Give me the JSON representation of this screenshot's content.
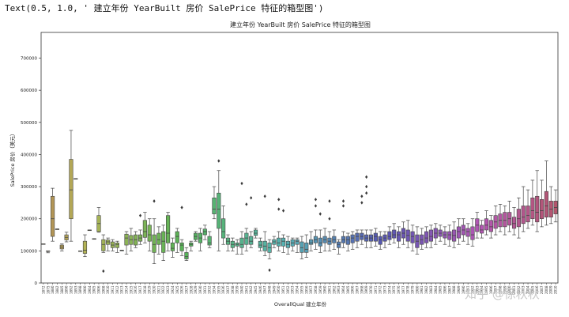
{
  "output_line": "Text(0.5, 1.0, ' 建立年份 YearBuilt 房价 SalePrice 特征的箱型图')",
  "watermark": "知乎 @徐秋秋",
  "chart_data": {
    "type": "box",
    "title": "建立年份 YearBuilt 房价 SalePrice 特征的箱型图",
    "xlabel": "OverallQual 建立年份",
    "ylabel": "SalePrice 房价（美元）",
    "ylim": [
      0,
      780000
    ],
    "yticks": [
      0,
      100000,
      200000,
      300000,
      400000,
      500000,
      600000,
      700000
    ],
    "grid": false,
    "legend": "none",
    "years": [
      1872,
      1875,
      1880,
      1882,
      1885,
      1890,
      1892,
      1893,
      1898,
      1900,
      1904,
      1905,
      1906,
      1908,
      1910,
      1911,
      1912,
      1913,
      1914,
      1915,
      1916,
      1917,
      1918,
      1919,
      1920,
      1921,
      1922,
      1923,
      1924,
      1925,
      1926,
      1927,
      1928,
      1929,
      1930,
      1931,
      1932,
      1934,
      1935,
      1936,
      1937,
      1938,
      1939,
      1940,
      1941,
      1942,
      1945,
      1946,
      1947,
      1948,
      1949,
      1950,
      1951,
      1952,
      1953,
      1954,
      1955,
      1956,
      1957,
      1958,
      1959,
      1960,
      1961,
      1962,
      1963,
      1964,
      1965,
      1966,
      1967,
      1968,
      1969,
      1970,
      1971,
      1972,
      1973,
      1974,
      1975,
      1976,
      1977,
      1978,
      1979,
      1980,
      1981,
      1982,
      1983,
      1984,
      1985,
      1986,
      1987,
      1988,
      1989,
      1990,
      1991,
      1992,
      1993,
      1994,
      1995,
      1996,
      1997,
      1998,
      1999,
      2000,
      2001,
      2002,
      2003,
      2004,
      2005,
      2006,
      2007,
      2008,
      2009,
      2010
    ],
    "boxes": [
      [
        122000,
        122000,
        122000,
        122000,
        122000,
        []
      ],
      [
        94000,
        100000,
        100000,
        100000,
        100000,
        []
      ],
      [
        130000,
        145000,
        200000,
        270000,
        295000,
        []
      ],
      [
        168000,
        168000,
        168000,
        168000,
        168000,
        []
      ],
      [
        100000,
        106000,
        112000,
        118000,
        122000,
        []
      ],
      [
        128000,
        134000,
        142000,
        150000,
        158000,
        []
      ],
      [
        130000,
        200000,
        290000,
        385000,
        475000,
        []
      ],
      [
        325000,
        325000,
        325000,
        325000,
        325000,
        []
      ],
      [
        100000,
        100000,
        100000,
        100000,
        100000,
        []
      ],
      [
        82000,
        92000,
        102000,
        130000,
        150000,
        []
      ],
      [
        165000,
        165000,
        165000,
        165000,
        165000,
        []
      ],
      [
        138000,
        138000,
        138000,
        138000,
        138000,
        []
      ],
      [
        158000,
        160000,
        185000,
        210000,
        235000,
        []
      ],
      [
        95000,
        100000,
        120000,
        135000,
        150000,
        [
          37000
        ]
      ],
      [
        100000,
        120000,
        128000,
        134000,
        140000,
        []
      ],
      [
        100000,
        110000,
        118000,
        128000,
        135000,
        []
      ],
      [
        95000,
        110000,
        120000,
        125000,
        130000,
        []
      ],
      [
        102000,
        102000,
        102000,
        102000,
        102000,
        []
      ],
      [
        90000,
        118000,
        140000,
        152000,
        160000,
        []
      ],
      [
        100000,
        120000,
        135000,
        148000,
        170000,
        []
      ],
      [
        110000,
        118000,
        135000,
        150000,
        160000,
        []
      ],
      [
        120000,
        130000,
        140000,
        150000,
        165000,
        [
          210000
        ]
      ],
      [
        125000,
        142000,
        160000,
        195000,
        220000,
        []
      ],
      [
        100000,
        130000,
        150000,
        180000,
        200000,
        []
      ],
      [
        60000,
        95000,
        120000,
        150000,
        200000,
        [
          255000
        ]
      ],
      [
        90000,
        120000,
        135000,
        155000,
        175000,
        []
      ],
      [
        70000,
        95000,
        130000,
        160000,
        180000,
        []
      ],
      [
        100000,
        125000,
        155000,
        210000,
        220000,
        []
      ],
      [
        80000,
        100000,
        108000,
        125000,
        140000,
        []
      ],
      [
        95000,
        125000,
        145000,
        160000,
        170000,
        []
      ],
      [
        85000,
        100000,
        118000,
        125000,
        135000,
        [
          235000
        ]
      ],
      [
        70000,
        75000,
        82000,
        95000,
        110000,
        []
      ],
      [
        100000,
        115000,
        120000,
        125000,
        130000,
        []
      ],
      [
        130000,
        135000,
        145000,
        155000,
        160000,
        []
      ],
      [
        100000,
        125000,
        140000,
        155000,
        170000,
        []
      ],
      [
        135000,
        150000,
        160000,
        168000,
        180000,
        []
      ],
      [
        110000,
        118000,
        125000,
        145000,
        160000,
        []
      ],
      [
        200000,
        215000,
        230000,
        265000,
        300000,
        []
      ],
      [
        100000,
        170000,
        230000,
        280000,
        350000,
        [
          380000
        ]
      ],
      [
        120000,
        140000,
        160000,
        200000,
        240000,
        []
      ],
      [
        100000,
        120000,
        130000,
        140000,
        150000,
        []
      ],
      [
        100000,
        110000,
        120000,
        130000,
        140000,
        []
      ],
      [
        90000,
        115000,
        120000,
        125000,
        135000,
        []
      ],
      [
        90000,
        110000,
        120000,
        140000,
        160000,
        [
          310000
        ]
      ],
      [
        100000,
        120000,
        140000,
        155000,
        170000,
        [
          245000
        ]
      ],
      [
        110000,
        120000,
        130000,
        145000,
        160000,
        [
          265000
        ]
      ],
      [
        140000,
        148000,
        155000,
        165000,
        170000,
        []
      ],
      [
        100000,
        110000,
        118000,
        130000,
        140000,
        []
      ],
      [
        85000,
        100000,
        115000,
        130000,
        160000,
        [
          270000
        ]
      ],
      [
        75000,
        95000,
        110000,
        125000,
        135000,
        [
          40000
        ]
      ],
      [
        110000,
        120000,
        128000,
        135000,
        145000,
        []
      ],
      [
        100000,
        115000,
        125000,
        140000,
        160000,
        [
          230000,
          260000
        ]
      ],
      [
        95000,
        115000,
        130000,
        140000,
        150000,
        [
          225000
        ]
      ],
      [
        90000,
        110000,
        120000,
        130000,
        145000,
        []
      ],
      [
        100000,
        115000,
        125000,
        135000,
        140000,
        []
      ],
      [
        95000,
        120000,
        130000,
        135000,
        140000,
        []
      ],
      [
        75000,
        95000,
        110000,
        128000,
        145000,
        []
      ],
      [
        80000,
        95000,
        105000,
        125000,
        150000,
        []
      ],
      [
        100000,
        120000,
        125000,
        135000,
        160000,
        []
      ],
      [
        105000,
        125000,
        135000,
        145000,
        165000,
        [
          240000,
          260000
        ]
      ],
      [
        95000,
        115000,
        125000,
        140000,
        165000,
        [
          215000
        ]
      ],
      [
        100000,
        125000,
        135000,
        145000,
        170000,
        []
      ],
      [
        100000,
        120000,
        130000,
        140000,
        160000,
        [
          200000,
          255000
        ]
      ],
      [
        105000,
        125000,
        135000,
        145000,
        165000,
        []
      ],
      [
        90000,
        110000,
        120000,
        128000,
        135000,
        []
      ],
      [
        110000,
        125000,
        135000,
        145000,
        160000,
        [
          240000,
          255000
        ]
      ],
      [
        100000,
        120000,
        135000,
        145000,
        155000,
        []
      ],
      [
        105000,
        125000,
        140000,
        150000,
        160000,
        []
      ],
      [
        110000,
        130000,
        145000,
        155000,
        165000,
        []
      ],
      [
        120000,
        135000,
        145000,
        155000,
        165000,
        [
          250000,
          270000
        ]
      ],
      [
        110000,
        130000,
        140000,
        150000,
        165000,
        [
          280000,
          300000,
          330000
        ]
      ],
      [
        110000,
        130000,
        140000,
        150000,
        165000,
        []
      ],
      [
        115000,
        130000,
        145000,
        155000,
        170000,
        []
      ],
      [
        105000,
        120000,
        135000,
        145000,
        160000,
        []
      ],
      [
        110000,
        130000,
        140000,
        150000,
        160000,
        []
      ],
      [
        120000,
        135000,
        145000,
        160000,
        175000,
        []
      ],
      [
        125000,
        140000,
        150000,
        165000,
        185000,
        []
      ],
      [
        110000,
        130000,
        150000,
        160000,
        175000,
        []
      ],
      [
        120000,
        140000,
        155000,
        170000,
        190000,
        []
      ],
      [
        110000,
        130000,
        148000,
        165000,
        195000,
        []
      ],
      [
        100000,
        125000,
        145000,
        160000,
        180000,
        []
      ],
      [
        90000,
        110000,
        130000,
        150000,
        175000,
        []
      ],
      [
        105000,
        120000,
        135000,
        150000,
        170000,
        []
      ],
      [
        110000,
        125000,
        140000,
        160000,
        175000,
        []
      ],
      [
        110000,
        130000,
        145000,
        165000,
        180000,
        []
      ],
      [
        120000,
        140000,
        155000,
        170000,
        185000,
        []
      ],
      [
        130000,
        145000,
        155000,
        165000,
        180000,
        []
      ],
      [
        120000,
        140000,
        150000,
        160000,
        175000,
        []
      ],
      [
        115000,
        135000,
        150000,
        160000,
        180000,
        []
      ],
      [
        110000,
        130000,
        148000,
        165000,
        190000,
        []
      ],
      [
        120000,
        140000,
        160000,
        175000,
        200000,
        []
      ],
      [
        130000,
        150000,
        165000,
        180000,
        200000,
        []
      ],
      [
        120000,
        145000,
        160000,
        170000,
        185000,
        []
      ],
      [
        115000,
        135000,
        150000,
        175000,
        200000,
        []
      ],
      [
        140000,
        160000,
        180000,
        200000,
        220000,
        []
      ],
      [
        140000,
        155000,
        165000,
        180000,
        195000,
        []
      ],
      [
        150000,
        165000,
        180000,
        200000,
        225000,
        []
      ],
      [
        140000,
        160000,
        175000,
        195000,
        210000,
        []
      ],
      [
        150000,
        170000,
        190000,
        210000,
        240000,
        []
      ],
      [
        160000,
        175000,
        195000,
        215000,
        245000,
        []
      ],
      [
        150000,
        175000,
        195000,
        220000,
        240000,
        []
      ],
      [
        160000,
        180000,
        200000,
        220000,
        255000,
        []
      ],
      [
        150000,
        170000,
        185000,
        205000,
        235000,
        []
      ],
      [
        140000,
        175000,
        200000,
        230000,
        265000,
        []
      ],
      [
        160000,
        185000,
        205000,
        240000,
        300000,
        []
      ],
      [
        170000,
        190000,
        210000,
        240000,
        290000,
        []
      ],
      [
        180000,
        200000,
        225000,
        265000,
        320000,
        []
      ],
      [
        160000,
        190000,
        220000,
        270000,
        350000,
        []
      ],
      [
        175000,
        200000,
        225000,
        260000,
        320000,
        []
      ],
      [
        180000,
        205000,
        240000,
        285000,
        380000,
        []
      ],
      [
        185000,
        205000,
        230000,
        255000,
        300000,
        []
      ],
      [
        190000,
        215000,
        235000,
        255000,
        290000,
        []
      ]
    ]
  }
}
